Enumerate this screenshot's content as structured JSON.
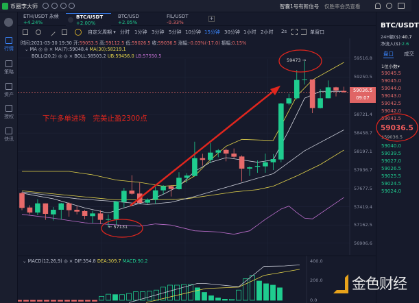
{
  "topbar": {
    "app_name": "币圈李大师",
    "signal_text": "智囊1号有新信号",
    "member_text": "仅胜率会员查看",
    "icons": [
      "bell-icon",
      "search-icon",
      "shirt-icon"
    ]
  },
  "sidebar": {
    "items": [
      {
        "label": "行情",
        "icon": "market-icon",
        "active": true
      },
      {
        "label": "策略",
        "icon": "strategy-icon"
      },
      {
        "label": "资产",
        "icon": "wallet-icon"
      },
      {
        "label": "授权",
        "icon": "key-icon"
      },
      {
        "label": "快讯",
        "icon": "news-icon"
      }
    ]
  },
  "tabs": [
    {
      "pair": "ETH/USDT 永续",
      "change": "+4.24%"
    },
    {
      "pair": "BTC/USDT",
      "change": "+2.00%",
      "active": true
    },
    {
      "pair": "BTC/USD",
      "change": "+2.05%"
    },
    {
      "pair": "FIL/USDT",
      "change": "-0.33%"
    }
  ],
  "add_tab": "+",
  "toolbar": {
    "custom_period": "自定义周期 ▾",
    "periods": [
      "分时",
      "1分钟",
      "3分钟",
      "5分钟",
      "10分钟",
      "15分钟",
      "30分钟",
      "1小时",
      "2小时",
      "2s"
    ],
    "selected_period": "15分钟",
    "single_window": "单窗口"
  },
  "ohlc_info": {
    "time_label": "时间:",
    "time": "2021-03-30 19:30",
    "open_label": "开:",
    "open": "59053.5",
    "high_label": "高:",
    "high": "59112.5",
    "low_label": "低:",
    "low": "59026.5",
    "close_label": "收:",
    "close": "59036.5",
    "change_label": "涨幅:",
    "change": "-0.03%(-17.0)",
    "amp_label": "振幅:",
    "amp": "0.15%"
  },
  "ma_info": {
    "name": "MA",
    "ma7": "MA(7):59048.4",
    "ma30": "MA(30):58219.1"
  },
  "boll_info": {
    "name": "BOLL(20,2)",
    "mid": "BOLL:58503.2",
    "ub": "UB:59456.0",
    "lb": "LB:57550.5"
  },
  "macd_info": {
    "name": "MACD(12,26,9)",
    "dif": "DIF:354.8",
    "dea": "DEA:309.7",
    "macd": "MACD:90.2"
  },
  "annotation": {
    "text": "下午多单进场　完美止盈2300点",
    "low_marker": "← 57131",
    "high_marker": "59473 →"
  },
  "price_axis": [
    "59516.8",
    "59250.5",
    "58721.4",
    "58458.7",
    "58197.1",
    "57936.7",
    "57677.5",
    "57419.4",
    "57162.5",
    "56906.6"
  ],
  "current_price_tag": {
    "price": "59036.5",
    "countdown": "09:07"
  },
  "macd_axis": [
    "400.0",
    "200.0",
    "0.0"
  ],
  "right_panel": {
    "pair": "BTC/USDT",
    "volume_label": "24H额($):",
    "volume": "40.7",
    "inflow_label": "净流入($):",
    "inflow": "2.6",
    "tab_book": "盘口",
    "tab_trades": "成交",
    "decimals": "1位小数▾",
    "asks": [
      "59045.5",
      "59045.0",
      "59044.0",
      "59043.0",
      "59042.5",
      "59042.0",
      "59041.5"
    ],
    "last_price": "59036.5",
    "last_price_usd": "$59036.5",
    "bids": [
      "59040.0",
      "59039.5",
      "59027.0",
      "59026.5",
      "59025.5",
      "59024.5",
      "59024.0"
    ]
  },
  "watermark": "金色财经",
  "colors": {
    "up": "#1fcc8f",
    "down": "#e86a6a",
    "accent": "#3a86ff",
    "ma30_ub": "#e6d64b",
    "lb": "#c070d0",
    "annotation": "#e0261e"
  },
  "chart_data": {
    "type": "candlestick",
    "candles": [
      [
        57612,
        57628,
        57371,
        57403
      ],
      [
        57409,
        57441,
        57312,
        57338
      ],
      [
        57338,
        57525,
        57300,
        57467
      ],
      [
        57467,
        57467,
        57235,
        57319
      ],
      [
        57312,
        57416,
        57225,
        57377
      ],
      [
        57377,
        57474,
        57242,
        57467
      ],
      [
        57467,
        57483,
        57280,
        57371
      ],
      [
        57377,
        57429,
        57312,
        57351
      ],
      [
        57358,
        57377,
        57242,
        57290
      ],
      [
        57287,
        57364,
        57190,
        57325
      ],
      [
        57325,
        57371,
        57177,
        57235
      ],
      [
        57235,
        57312,
        57131,
        57245
      ],
      [
        57242,
        57499,
        57161,
        57493
      ],
      [
        57487,
        57686,
        57409,
        57644
      ],
      [
        57648,
        57864,
        57590,
        57603
      ],
      [
        57606,
        57764,
        57474,
        57474
      ],
      [
        57477,
        57538,
        57461,
        57522
      ],
      [
        57519,
        57699,
        57461,
        57651
      ],
      [
        57651,
        57725,
        57596,
        57709
      ],
      [
        57709,
        57725,
        57564,
        57670
      ],
      [
        57667,
        57906,
        57661,
        57828
      ],
      [
        57828,
        57893,
        57757,
        57860
      ],
      [
        57854,
        58337,
        57848,
        58105
      ],
      [
        58105,
        58167,
        57999,
        58080
      ],
      [
        58080,
        58318,
        58034,
        58183
      ],
      [
        58183,
        58234,
        58118,
        58215
      ],
      [
        58221,
        58241,
        58060,
        58170
      ],
      [
        58170,
        58241,
        58105,
        58125
      ],
      [
        58128,
        58144,
        57777,
        57957
      ],
      [
        57957,
        57989,
        57854,
        57976
      ],
      [
        57983,
        58073,
        57899,
        57996
      ],
      [
        57989,
        58170,
        57899,
        58047
      ],
      [
        58047,
        58163,
        57938,
        58092
      ],
      [
        58086,
        58885,
        58047,
        58876
      ],
      [
        58876,
        59014,
        58853,
        58950
      ],
      [
        58950,
        59349,
        58934,
        59208
      ],
      [
        59208,
        59473,
        59143,
        59214
      ],
      [
        59214,
        59214,
        58740,
        58811
      ],
      [
        58811,
        59079,
        58805,
        58950
      ],
      [
        58950,
        59201,
        58950,
        59104
      ],
      [
        59104,
        59111,
        58976,
        59059
      ],
      [
        59053.5,
        59112.5,
        59026.5,
        59036.5
      ]
    ],
    "candle_fields": [
      "open",
      "high",
      "low",
      "close"
    ],
    "lines": {
      "ub": [
        [
          1,
          57918
        ],
        [
          7,
          57918
        ],
        [
          10,
          57870
        ],
        [
          13,
          57796
        ],
        [
          16,
          57764
        ],
        [
          19,
          57709
        ],
        [
          21,
          57725
        ],
        [
          23,
          57854
        ],
        [
          25,
          58080
        ],
        [
          27,
          58273
        ],
        [
          29,
          58370
        ],
        [
          33,
          58354
        ],
        [
          36,
          58982
        ],
        [
          38,
          59208
        ],
        [
          42,
          59456
        ]
      ],
      "ma30": [
        [
          1,
          57644
        ],
        [
          10,
          57548
        ],
        [
          13,
          57516
        ],
        [
          17,
          57516
        ],
        [
          22,
          57532
        ],
        [
          25,
          57580
        ],
        [
          28,
          57628
        ],
        [
          31,
          57661
        ],
        [
          33,
          57709
        ],
        [
          36,
          57854
        ],
        [
          39,
          58015
        ],
        [
          42,
          58219
        ]
      ],
      "boll_mid": [
        [
          1,
          57628
        ],
        [
          8,
          57532
        ],
        [
          13,
          57493
        ],
        [
          17,
          57451
        ],
        [
          20,
          57483
        ],
        [
          23,
          57564
        ],
        [
          26,
          57661
        ],
        [
          29,
          57757
        ],
        [
          33,
          57886
        ],
        [
          37,
          58209
        ],
        [
          42,
          58503
        ]
      ],
      "ma7": [
        [
          1,
          57612
        ],
        [
          5,
          57532
        ],
        [
          9,
          57403
        ],
        [
          12,
          57332
        ],
        [
          14,
          57403
        ],
        [
          17,
          57499
        ],
        [
          19,
          57596
        ],
        [
          21,
          57709
        ],
        [
          23,
          57918
        ],
        [
          25,
          58047
        ],
        [
          27,
          58112
        ],
        [
          29,
          58080
        ],
        [
          31,
          58047
        ],
        [
          33,
          58080
        ],
        [
          35,
          58499
        ],
        [
          36,
          58724
        ],
        [
          37,
          58950
        ],
        [
          39,
          59047
        ],
        [
          42,
          59048
        ]
      ],
      "lb": [
        [
          1,
          57312
        ],
        [
          5,
          57258
        ],
        [
          9,
          57193
        ],
        [
          12,
          57171
        ],
        [
          16,
          57145
        ],
        [
          18,
          57177
        ],
        [
          20,
          57161
        ],
        [
          23,
          57080
        ],
        [
          26,
          57064
        ],
        [
          28,
          57032
        ],
        [
          30,
          57080
        ],
        [
          32,
          57242
        ],
        [
          34,
          57387
        ],
        [
          35,
          57429
        ],
        [
          36,
          57338
        ],
        [
          37,
          57258
        ],
        [
          38,
          57248
        ],
        [
          42,
          57550
        ]
      ]
    },
    "macd": {
      "hist": [
        -10,
        -10,
        -10,
        -10,
        -10,
        -10,
        -10,
        -10,
        -10,
        -10,
        -10,
        -10,
        39,
        61,
        57,
        57,
        68,
        86,
        86,
        91,
        102,
        132,
        152,
        152,
        159,
        159,
        125,
        79,
        45,
        23,
        11,
        11,
        102,
        216,
        250,
        193,
        166,
        152,
        125
      ],
      "dif": [
        [
          16,
          -23
        ],
        [
          26,
          170
        ],
        [
          27,
          170
        ],
        [
          32,
          136
        ],
        [
          35.7,
          341
        ],
        [
          38.7,
          345
        ],
        [
          40.9,
          356
        ]
      ],
      "dea": [
        [
          18.5,
          -23
        ],
        [
          27.2,
          118
        ],
        [
          32,
          132
        ],
        [
          35.7,
          250
        ],
        [
          40.9,
          311
        ]
      ],
      "ylim": [
        0,
        400
      ]
    },
    "price_range": [
      56906.6,
      59516.8
    ]
  }
}
